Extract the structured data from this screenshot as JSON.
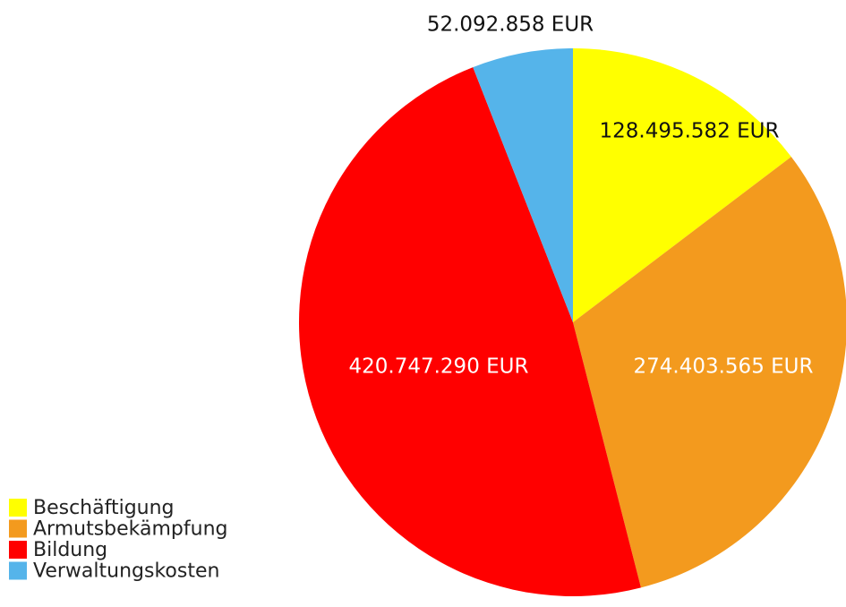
{
  "chart_data": {
    "type": "pie",
    "categories": [
      "Beschäftigung",
      "Armutsbekämpfung",
      "Bildung",
      "Verwaltungskosten"
    ],
    "values": [
      128495582,
      274403565,
      420747290,
      52092858
    ],
    "value_labels": [
      "128.495.582 EUR",
      "274.403.565 EUR",
      "420.747.290 EUR",
      "52.092.858 EUR"
    ],
    "colors": [
      "#ffff00",
      "#f39a1e",
      "#ff0000",
      "#55b4ea"
    ],
    "legend": "bottom-left"
  }
}
